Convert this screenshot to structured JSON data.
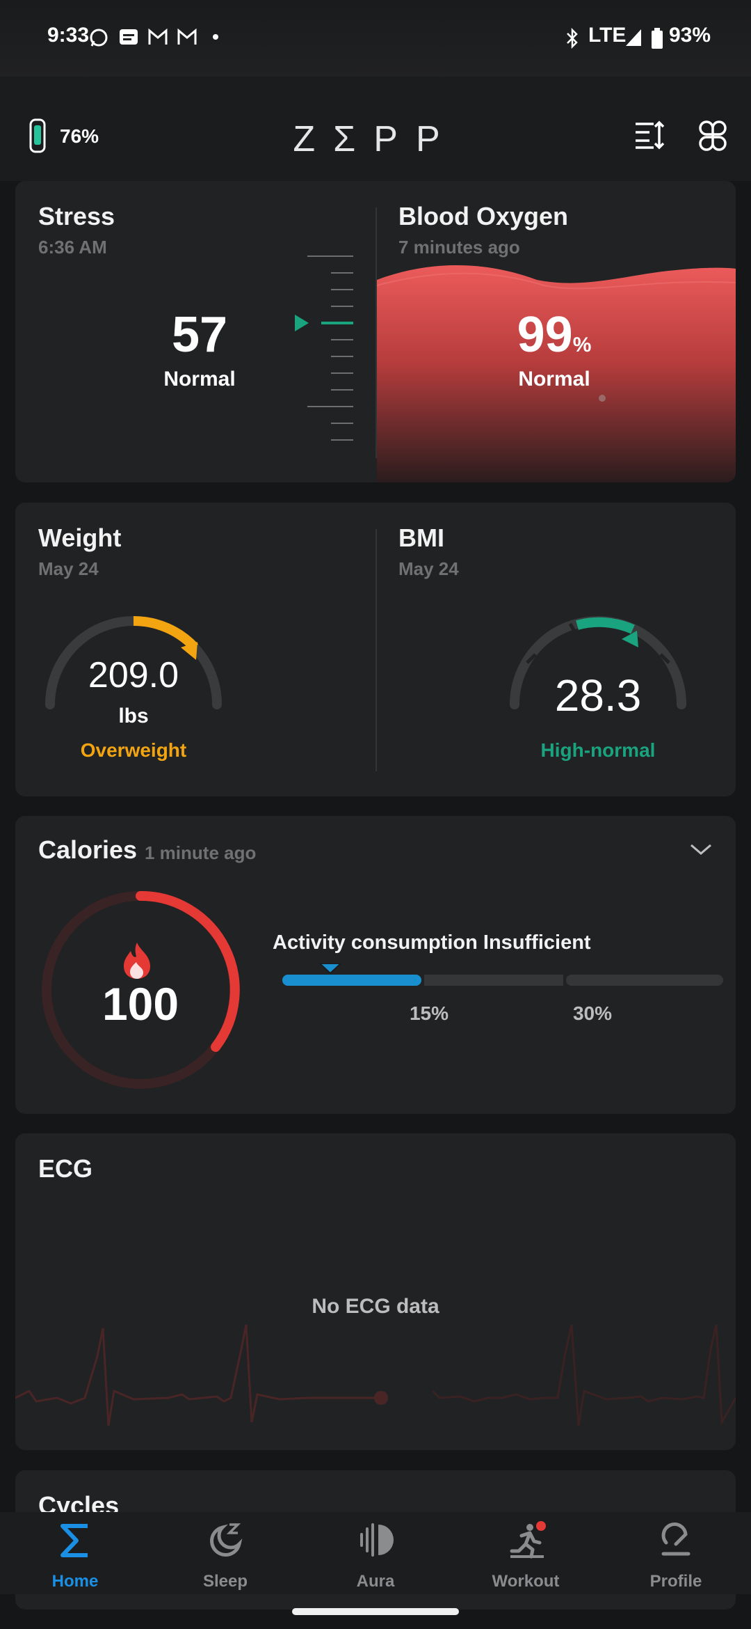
{
  "status_bar": {
    "time": "9:33",
    "network": "LTE",
    "battery": "93%"
  },
  "header": {
    "device_battery": "76%",
    "logo": "ZΣPP"
  },
  "stress": {
    "title": "Stress",
    "time": "6:36 AM",
    "value": "57",
    "status": "Normal",
    "status_color": "#ffffff",
    "accent": "#1aa37f"
  },
  "blood_oxygen": {
    "title": "Blood Oxygen",
    "time": "7 minutes ago",
    "value": "99",
    "unit": "%",
    "status": "Normal",
    "accent": "#e85050"
  },
  "weight": {
    "title": "Weight",
    "date": "May 24",
    "value": "209.0",
    "unit": "lbs",
    "status": "Overweight",
    "status_color": "#f2a411"
  },
  "bmi": {
    "title": "BMI",
    "date": "May 24",
    "value": "28.3",
    "status": "High-normal",
    "status_color": "#1aa37f"
  },
  "calories": {
    "title": "Calories",
    "time": "1 minute ago",
    "value": "100",
    "activity_text": "Activity consumption Insufficient",
    "progress_percent": 15,
    "marks": [
      "15%",
      "30%"
    ],
    "ring_color": "#e53935",
    "bar_color": "#1a8fd0"
  },
  "ecg": {
    "title": "ECG",
    "empty_text": "No ECG data"
  },
  "cycles": {
    "title": "Cycles"
  },
  "nav": {
    "items": [
      {
        "label": "Home",
        "icon": "sigma-icon",
        "active": true
      },
      {
        "label": "Sleep",
        "icon": "moon-icon",
        "active": false
      },
      {
        "label": "Aura",
        "icon": "aura-icon",
        "active": false
      },
      {
        "label": "Workout",
        "icon": "running-icon",
        "active": false
      },
      {
        "label": "Profile",
        "icon": "profile-icon",
        "active": false
      }
    ],
    "active_color": "#1a8fe3"
  }
}
